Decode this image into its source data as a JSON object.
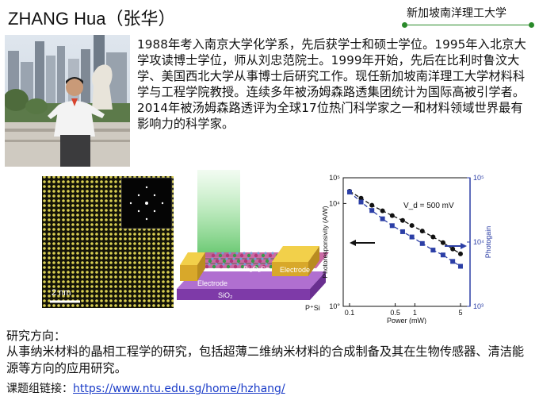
{
  "header": {
    "name": "ZHANG Hua（张华）",
    "affiliation": "新加坡南洋理工大学"
  },
  "bio": "1988年考入南京大学化学系，先后获学士和硕士学位。1995年入北京大学攻读博士学位，师从刘忠范院士。1999年开始，先后在比利时鲁汶大学、美国西北大学从事博士后研究工作。现任新加坡南洋理工大学材料科学与工程学院教授。连续多年被汤姆森路透集团统计为国际高被引学者。2014年被汤姆森路透评为全球17位热门科学家之一和材料领域世界最有影响力的科学家。",
  "figures": {
    "scale_bar": "2 nm",
    "device_labels": {
      "electrode_left": "Electrode",
      "electrode_right": "Electrode",
      "material": "Bi₂O₂Se",
      "sio2": "SiO₂",
      "substrate": "P⁺Si"
    }
  },
  "chart_data": {
    "type": "scatter",
    "xlabel": "Power (mW)",
    "ylabel_left": "Photoresponsivity (A/W)",
    "ylabel_right": "Photogain",
    "annotation": "V_d = 500 mV",
    "x_scale": "log",
    "y_scale": "log",
    "xlim": [
      0.08,
      7
    ],
    "ylim_left": [
      1,
      100000
    ],
    "ylim_right": [
      1000,
      100000
    ],
    "x_ticks": [
      "0.1",
      "0.5",
      "1",
      "5"
    ],
    "y_ticks_left": [
      "10°",
      "10⁴",
      "10⁵"
    ],
    "y_ticks_right": [
      "10³",
      "10⁴",
      "10⁵"
    ],
    "series": [
      {
        "axis": "left",
        "marker": "circle",
        "color": "#111111",
        "x": [
          0.1,
          0.15,
          0.22,
          0.32,
          0.45,
          0.65,
          0.9,
          1.3,
          1.9,
          2.7,
          3.8,
          5.0
        ],
        "y": [
          30000,
          16000,
          8500,
          5200,
          3400,
          2200,
          1400,
          850,
          500,
          300,
          170,
          110
        ]
      },
      {
        "axis": "right",
        "marker": "square",
        "color": "#2c3fa6",
        "x": [
          0.1,
          0.15,
          0.22,
          0.32,
          0.45,
          0.65,
          0.9,
          1.3,
          1.9,
          2.7,
          3.8,
          5.0
        ],
        "y": [
          60000,
          42000,
          31000,
          23000,
          18000,
          14500,
          12000,
          9500,
          7500,
          6300,
          5000,
          4200
        ]
      }
    ]
  },
  "research": {
    "label": "研究方向：",
    "text": "从事纳米材料的晶相工程学的研究，包括超薄二维纳米材料的合成制备及其在生物传感器、清洁能源等方向的应用研究。"
  },
  "link": {
    "label": "课题组链接：",
    "url": "https://www.ntu.edu.sg/home/hzhang/"
  },
  "colors": {
    "accent_green": "#2a8a2a",
    "link_blue": "#1a3cc8",
    "series_blue": "#2c3fa6"
  }
}
